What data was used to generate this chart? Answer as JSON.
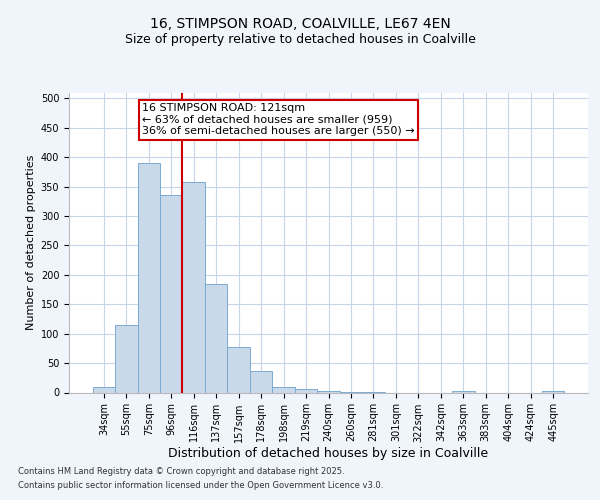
{
  "title1": "16, STIMPSON ROAD, COALVILLE, LE67 4EN",
  "title2": "Size of property relative to detached houses in Coalville",
  "xlabel": "Distribution of detached houses by size in Coalville",
  "ylabel": "Number of detached properties",
  "categories": [
    "34sqm",
    "55sqm",
    "75sqm",
    "96sqm",
    "116sqm",
    "137sqm",
    "157sqm",
    "178sqm",
    "198sqm",
    "219sqm",
    "240sqm",
    "260sqm",
    "281sqm",
    "301sqm",
    "322sqm",
    "342sqm",
    "363sqm",
    "383sqm",
    "404sqm",
    "424sqm",
    "445sqm"
  ],
  "values": [
    10,
    115,
    390,
    335,
    358,
    185,
    77,
    36,
    10,
    6,
    3,
    1,
    1,
    0,
    0,
    0,
    2,
    0,
    0,
    0,
    2
  ],
  "bar_color": "#c9d9ea",
  "bar_edge_color": "#7aaad0",
  "vline_color": "#cc0000",
  "vline_x_index": 4,
  "annotation_text_line1": "16 STIMPSON ROAD: 121sqm",
  "annotation_text_line2": "← 63% of detached houses are smaller (959)",
  "annotation_text_line3": "36% of semi-detached houses are larger (550) →",
  "annotation_box_color": "#ffffff",
  "annotation_box_edge": "#cc0000",
  "footer1": "Contains HM Land Registry data © Crown copyright and database right 2025.",
  "footer2": "Contains public sector information licensed under the Open Government Licence v3.0.",
  "bg_color": "#f0f4fb",
  "plot_bg_color": "#ffffff",
  "grid_color": "#c8d4ea",
  "title_fontsize": 10,
  "subtitle_fontsize": 9,
  "xlabel_fontsize": 9,
  "ylabel_fontsize": 8,
  "tick_fontsize": 7,
  "footer_fontsize": 6,
  "ann_fontsize": 8,
  "ylim": [
    0,
    510
  ],
  "yticks": [
    0,
    50,
    100,
    150,
    200,
    250,
    300,
    350,
    400,
    450,
    500
  ]
}
